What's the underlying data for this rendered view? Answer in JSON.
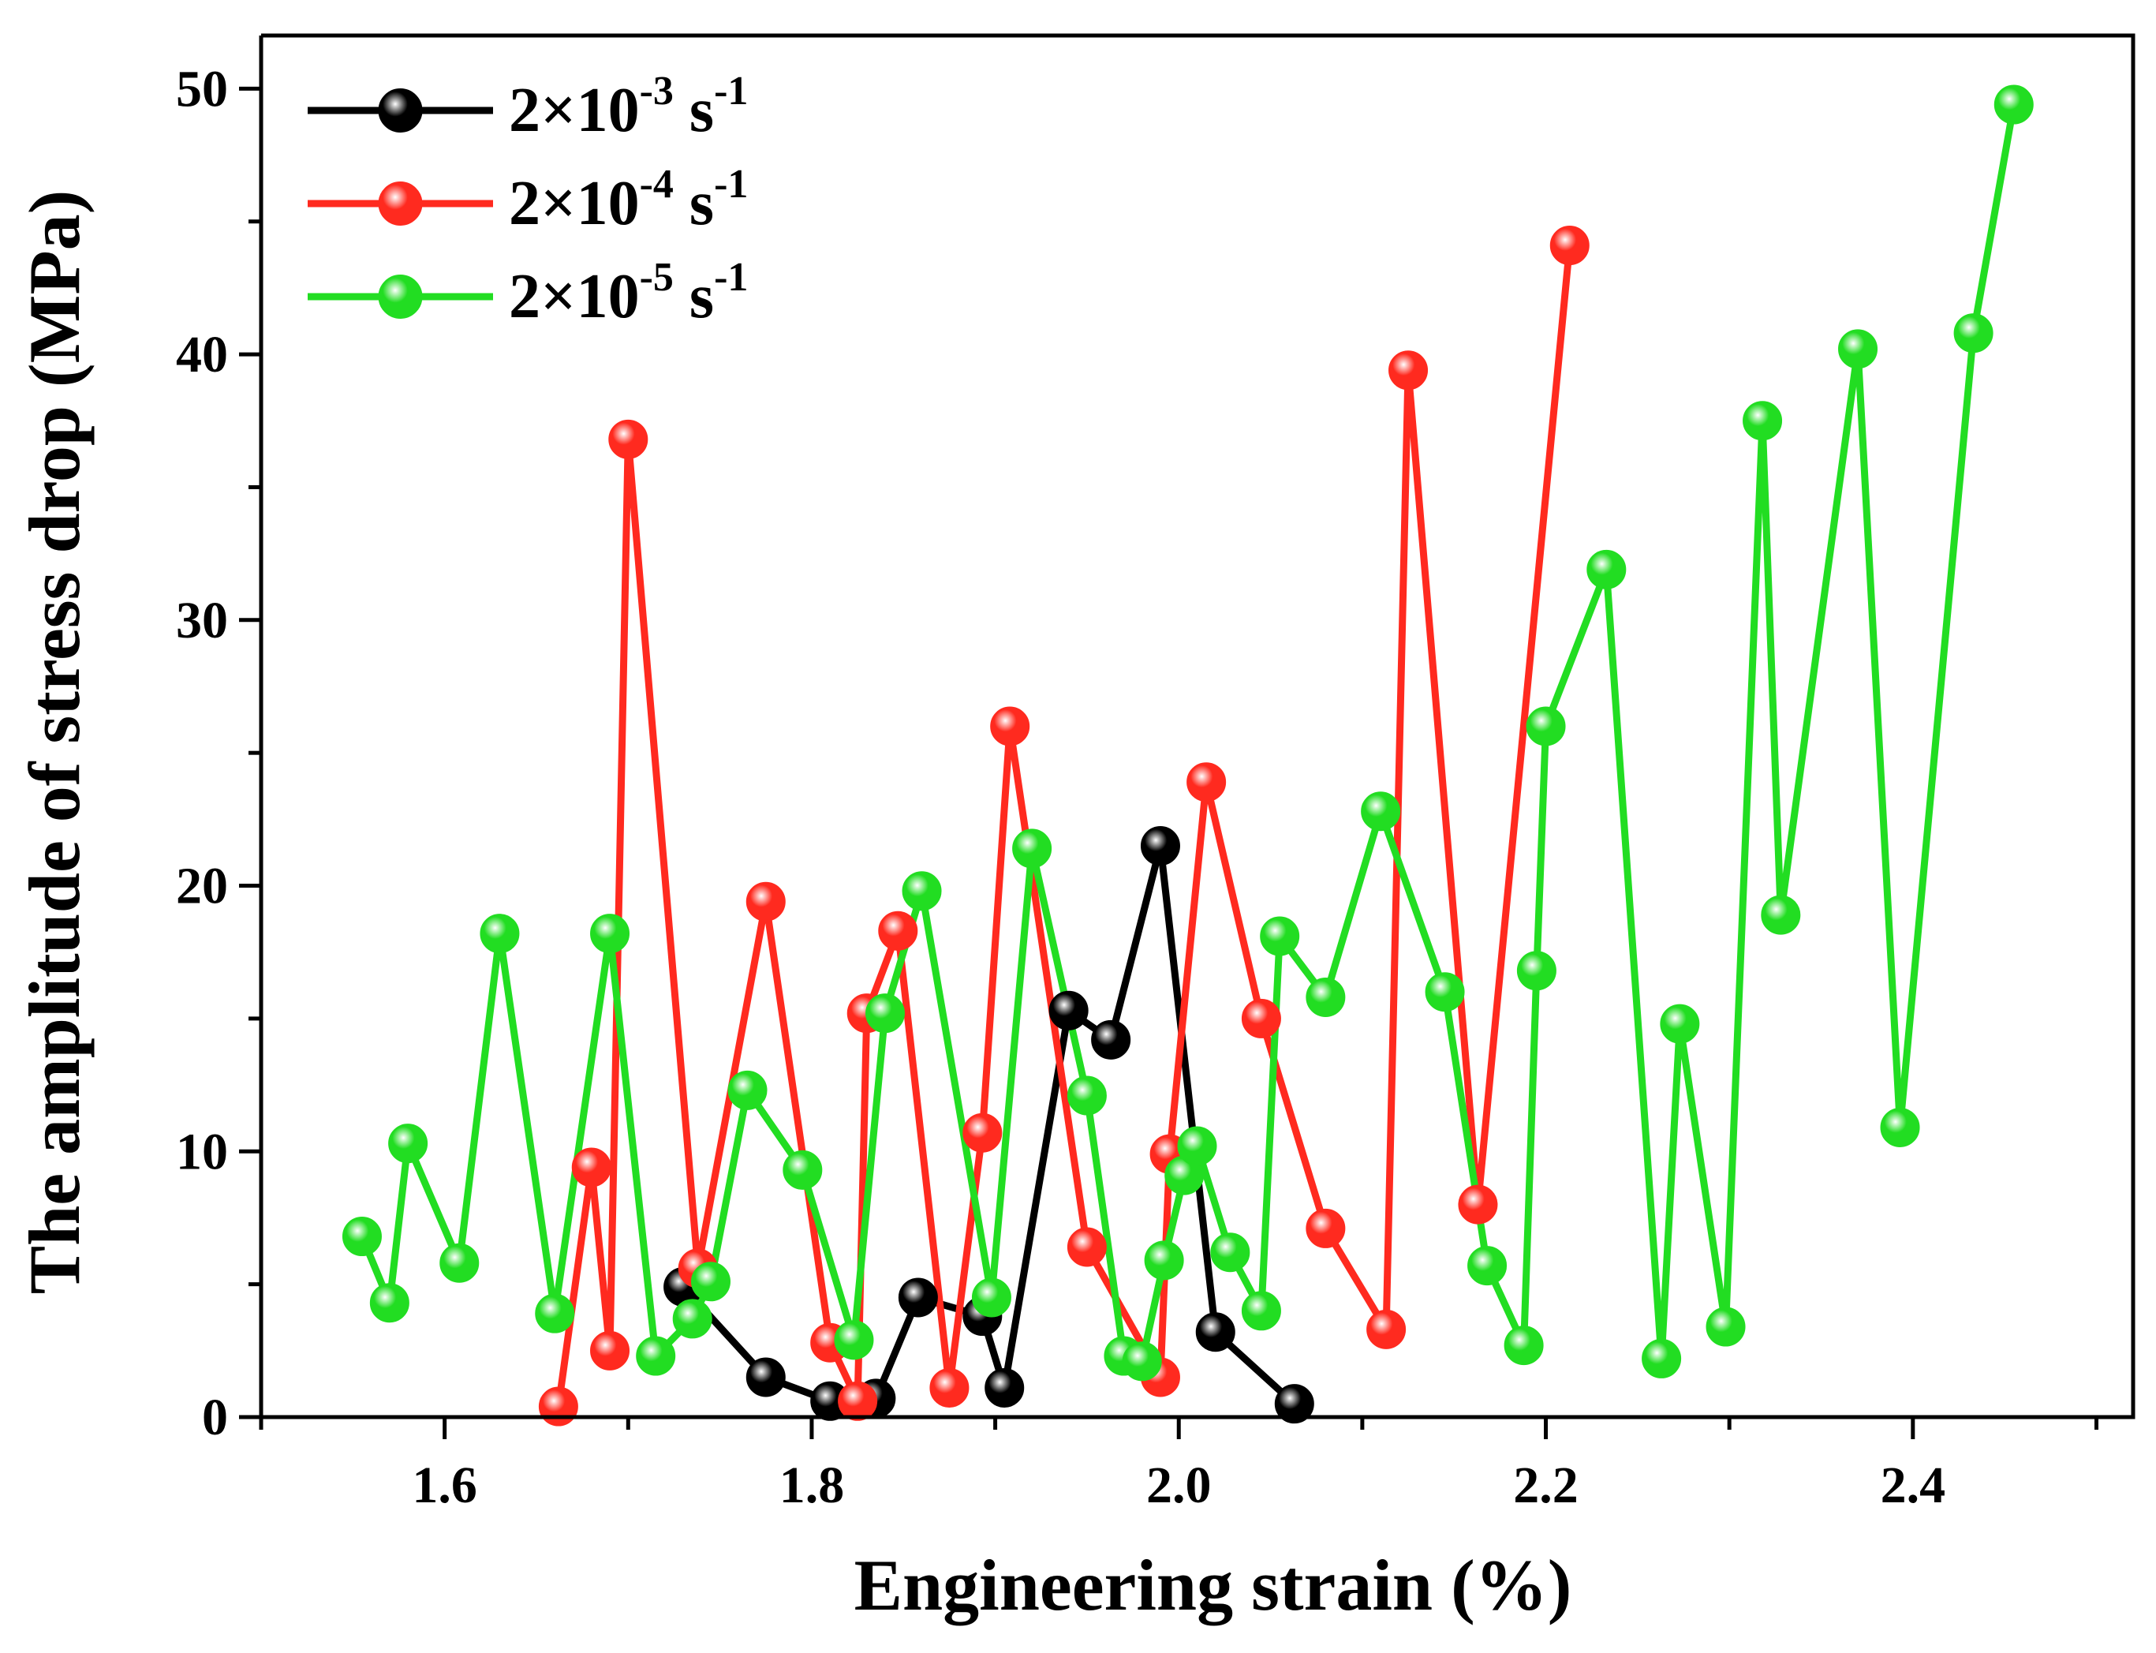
{
  "chart_data": {
    "type": "line",
    "title": "",
    "xlabel": "Engineering strain (%)",
    "ylabel": "The amplitude of stress drop (MPa)",
    "xlim": [
      1.5,
      2.52
    ],
    "ylim": [
      0,
      52
    ],
    "xticks": [
      "1.6",
      "1.8",
      "2.0",
      "2.2",
      "2.4"
    ],
    "xtick_values": [
      1.6,
      1.8,
      2.0,
      2.2,
      2.4
    ],
    "yticks": [
      "0",
      "10",
      "20",
      "30",
      "40",
      "50"
    ],
    "ytick_values": [
      0,
      10,
      20,
      30,
      40,
      50
    ],
    "legend_position": "top-left",
    "series": [
      {
        "name": "2×10-3 s-1",
        "legend": {
          "base": "2×10",
          "exp": "-3",
          "unit": " s",
          "unit_exp": "-1"
        },
        "color": "#000000",
        "x": [
          1.73,
          1.775,
          1.81,
          1.835,
          1.858,
          1.893,
          1.905,
          1.94,
          1.963,
          1.99,
          2.02,
          2.063
        ],
        "y": [
          4.9,
          1.5,
          0.6,
          0.7,
          4.5,
          3.8,
          1.1,
          15.3,
          14.2,
          21.5,
          3.2,
          0.5
        ]
      },
      {
        "name": "2×10-4 s-1",
        "legend": {
          "base": "2×10",
          "exp": "-4",
          "unit": " s",
          "unit_exp": "-1"
        },
        "color": "#ff2a1f",
        "x": [
          1.662,
          1.68,
          1.69,
          1.7,
          1.738,
          1.775,
          1.81,
          1.825,
          1.83,
          1.847,
          1.875,
          1.893,
          1.908,
          1.95,
          1.99,
          1.995,
          2.015,
          2.045,
          2.08,
          2.113,
          2.125,
          2.163,
          2.213
        ],
        "y": [
          0.4,
          9.4,
          2.5,
          36.8,
          5.6,
          19.4,
          2.8,
          0.6,
          15.2,
          18.3,
          1.1,
          10.7,
          26.0,
          6.4,
          1.5,
          9.9,
          23.9,
          15.0,
          7.1,
          3.3,
          39.4,
          8.0,
          44.1
        ]
      },
      {
        "name": "2×10-5 s-1",
        "legend": {
          "base": "2×10",
          "exp": "-5",
          "unit": " s",
          "unit_exp": "-1"
        },
        "color": "#22dd22",
        "x": [
          1.555,
          1.57,
          1.58,
          1.608,
          1.63,
          1.66,
          1.69,
          1.715,
          1.735,
          1.745,
          1.765,
          1.795,
          1.823,
          1.84,
          1.86,
          1.898,
          1.92,
          1.95,
          1.97,
          1.98,
          1.992,
          2.003,
          2.01,
          2.028,
          2.045,
          2.055,
          2.08,
          2.11,
          2.145,
          2.168,
          2.188,
          2.195,
          2.2,
          2.233,
          2.263,
          2.273,
          2.298,
          2.318,
          2.328,
          2.37,
          2.393,
          2.433,
          2.455
        ],
        "y": [
          6.8,
          4.3,
          10.3,
          5.8,
          18.2,
          3.9,
          18.2,
          2.3,
          3.7,
          5.1,
          12.3,
          9.3,
          2.9,
          15.2,
          19.8,
          4.5,
          21.4,
          12.1,
          2.3,
          2.1,
          5.9,
          9.1,
          10.2,
          6.2,
          4.0,
          18.1,
          15.8,
          22.8,
          16.0,
          5.7,
          2.7,
          16.8,
          26.0,
          31.9,
          2.2,
          14.8,
          3.4,
          37.5,
          18.9,
          40.2,
          10.9,
          40.8,
          49.4
        ]
      }
    ]
  }
}
